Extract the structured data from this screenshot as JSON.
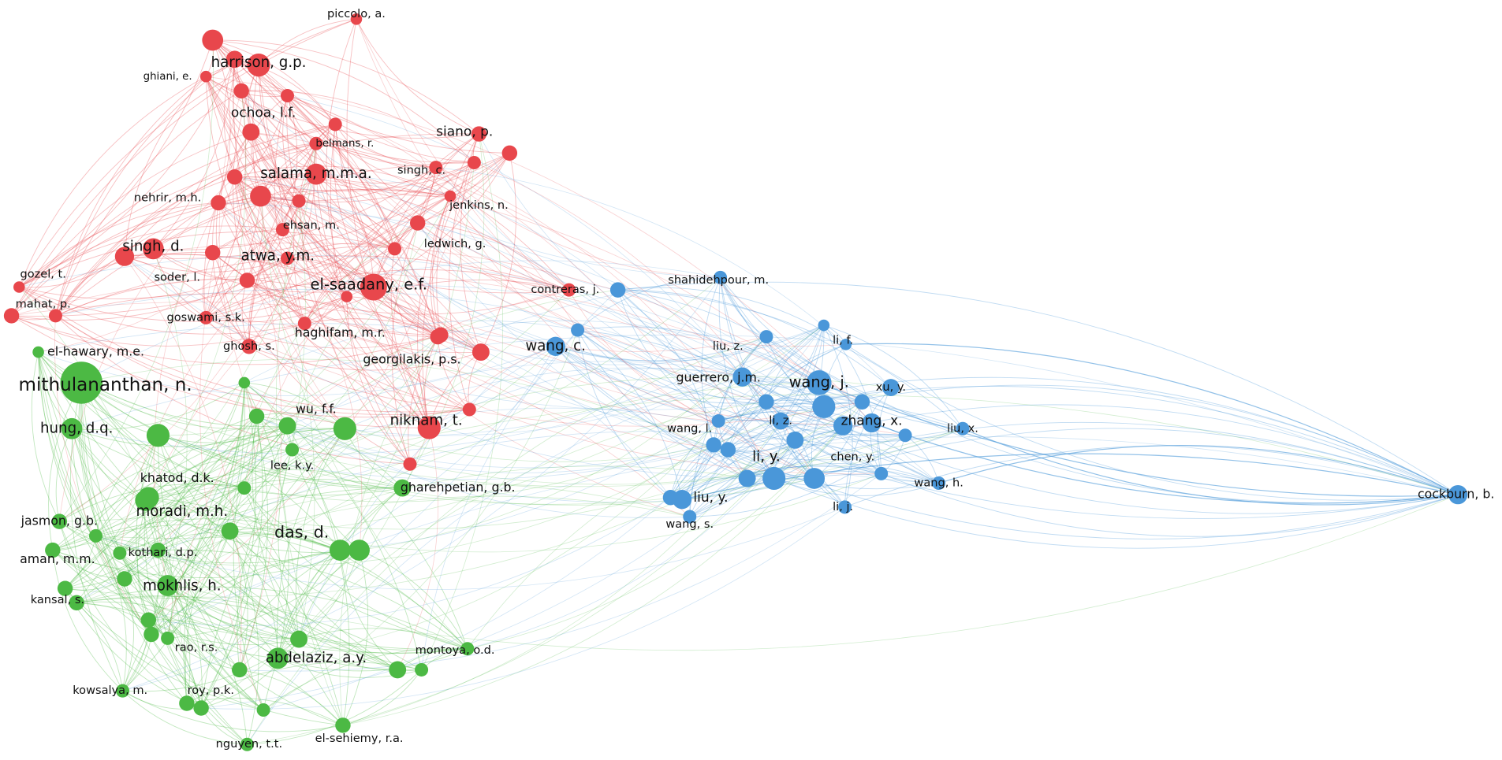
{
  "clusters": [
    {
      "color": "#e8474c",
      "nodes": [
        "piccolo, a.",
        "harrison, g.p.",
        "ghiani, e.",
        "ochoa, l.f.",
        "siano, p.",
        "belmans, r.",
        "salama, m.m.a.",
        "singh, c.",
        "nehrir, m.h.",
        "jenkins, n.",
        "ehsan, m.",
        "ledwich, g.",
        "singh, d.",
        "atwa, y.m.",
        "gozel, t.",
        "soder, l.",
        "el-saadany, e.f.",
        "contreras, j.",
        "mahat, p.",
        "goswami, s.k.",
        "ghosh, s.",
        "haghifam, m.r.",
        "georgilakis, p.s.",
        "niknam, t."
      ]
    },
    {
      "color": "#4cb944",
      "nodes": [
        "el-hawary, m.e.",
        "mithulananthan, n.",
        "hung, d.q.",
        "wu, f.f.",
        "lee, k.y.",
        "khatod, d.k.",
        "gharehpetian, g.b.",
        "moradi, m.h.",
        "jasmon, g.b.",
        "das, d.",
        "kothari, d.p.",
        "aman, m.m.",
        "mokhlis, h.",
        "kansal, s.",
        "rao, r.s.",
        "abdelaziz, a.y.",
        "montoya, o.d.",
        "kowsalya, m.",
        "roy, p.k.",
        "nguyen, t.t.",
        "el-sehiemy, r.a."
      ]
    },
    {
      "color": "#4a97d9",
      "nodes": [
        "shahidehpour, m.",
        "wang, c.",
        "liu, z.",
        "li, f.",
        "guerrero, j.m.",
        "wang, j.",
        "xu, y.",
        "wang, l.",
        "li, z.",
        "zhang, x.",
        "liu, x.",
        "li, y.",
        "chen, y.",
        "wang, h.",
        "cockburn, b.",
        "liu, y.",
        "li, j.",
        "wang, s."
      ]
    }
  ]
}
